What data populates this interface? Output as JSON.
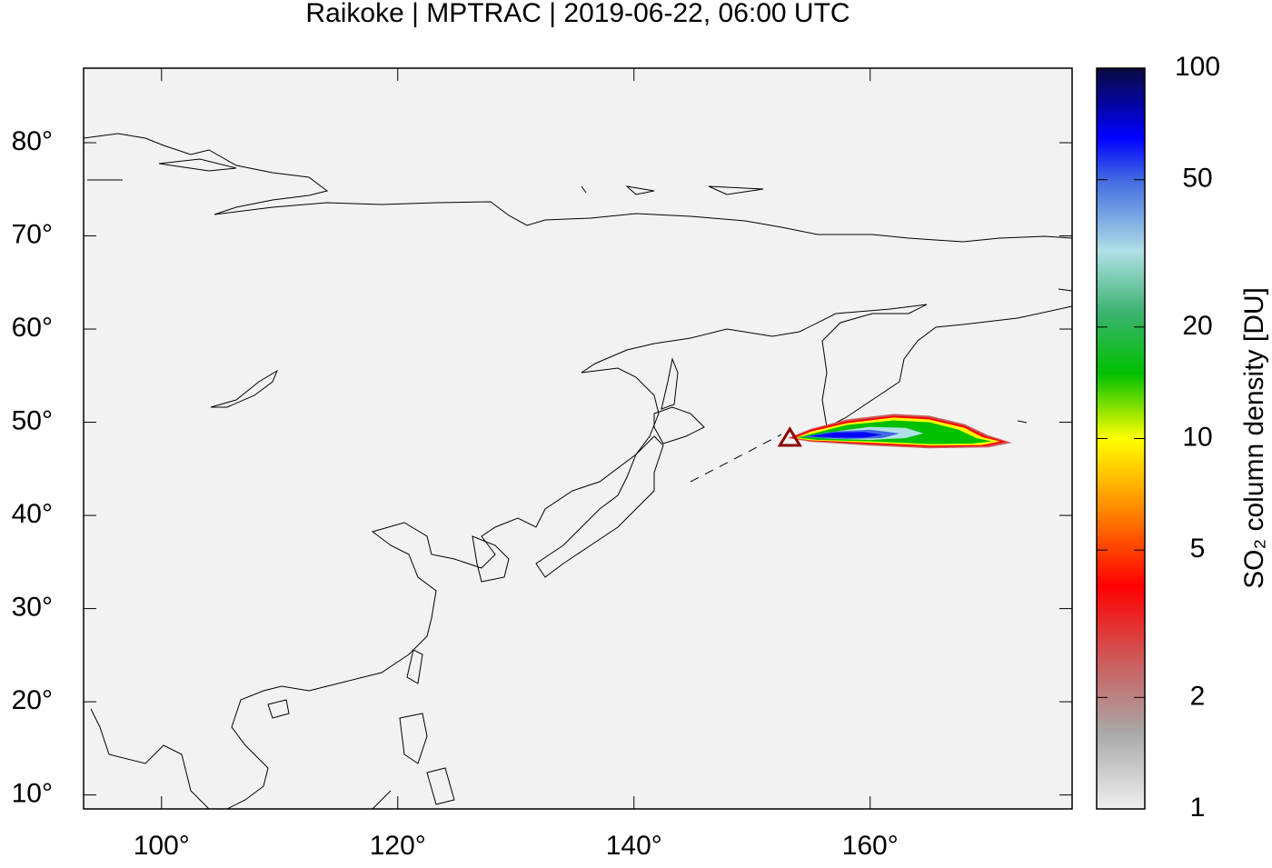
{
  "chart_data": {
    "type": "map",
    "title": "Raikoke | MPTRAC | 2019-06-22, 06:00 UTC",
    "xlim": [
      93.4,
      177.1
    ],
    "ylim": [
      8.5,
      88
    ],
    "xticks": [
      {
        "value": 100,
        "label": "100°"
      },
      {
        "value": 120,
        "label": "120°"
      },
      {
        "value": 140,
        "label": "140°"
      },
      {
        "value": 160,
        "label": "160°"
      }
    ],
    "yticks": [
      {
        "value": 10,
        "label": "10°"
      },
      {
        "value": 20,
        "label": "20°"
      },
      {
        "value": 30,
        "label": "30°"
      },
      {
        "value": 40,
        "label": "40°"
      },
      {
        "value": 50,
        "label": "50°"
      },
      {
        "value": 60,
        "label": "60°"
      },
      {
        "value": 70,
        "label": "70°"
      },
      {
        "value": 80,
        "label": "80°"
      }
    ],
    "colorbar": {
      "label": "SO₂ column density [DU]",
      "log_scale": true,
      "lim": [
        1,
        100
      ],
      "ticks": [
        1,
        2,
        5,
        10,
        20,
        50,
        100
      ],
      "colorscale": [
        {
          "value": 1,
          "color": "#efefef"
        },
        {
          "value": 1.6,
          "color": "#a9a9a9"
        },
        {
          "value": 2.5,
          "color": "#cd5c5c"
        },
        {
          "value": 4,
          "color": "#ff0000"
        },
        {
          "value": 6.5,
          "color": "#ff8c00"
        },
        {
          "value": 10,
          "color": "#ffff00"
        },
        {
          "value": 15,
          "color": "#00c000"
        },
        {
          "value": 22,
          "color": "#3cb371"
        },
        {
          "value": 32,
          "color": "#b0e0e6"
        },
        {
          "value": 50,
          "color": "#4169e1"
        },
        {
          "value": 65,
          "color": "#0000ff"
        },
        {
          "value": 100,
          "color": "#0a0a40"
        }
      ]
    },
    "contours": [
      {
        "level": 2.5,
        "lon": [
          153,
          155,
          158,
          162,
          165,
          168,
          170,
          172,
          170,
          165,
          160,
          155
        ],
        "lat": [
          48.3,
          49.3,
          50.3,
          50.9,
          50.7,
          49.8,
          48.6,
          47.8,
          47.3,
          47.2,
          47.5,
          47.9
        ]
      },
      {
        "level": 5,
        "lon": [
          153.3,
          155,
          158,
          162,
          165,
          168,
          169.8,
          171.5,
          169.8,
          165,
          160,
          155
        ],
        "lat": [
          48.3,
          49.2,
          50.1,
          50.7,
          50.5,
          49.6,
          48.5,
          47.9,
          47.45,
          47.35,
          47.65,
          48.0
        ]
      },
      {
        "level": 10,
        "lon": [
          153.6,
          155,
          158,
          162,
          165,
          168,
          169.5,
          171,
          169.5,
          165,
          160,
          155
        ],
        "lat": [
          48.3,
          49.0,
          49.9,
          50.5,
          50.3,
          49.4,
          48.4,
          47.95,
          47.55,
          47.5,
          47.8,
          48.05
        ]
      },
      {
        "level": 17,
        "lon": [
          153.8,
          155.5,
          158,
          162,
          165,
          167.5,
          169,
          170.3,
          168.5,
          165,
          160,
          155.5
        ],
        "lat": [
          48.35,
          48.9,
          49.7,
          50.2,
          50.0,
          49.2,
          48.3,
          47.95,
          47.7,
          47.65,
          47.95,
          48.1
        ]
      },
      {
        "level": 32,
        "lon": [
          154.5,
          157,
          160,
          163,
          164.5,
          163,
          160,
          157
        ],
        "lat": [
          48.45,
          49.0,
          49.5,
          49.4,
          48.8,
          48.3,
          48.1,
          48.2
        ]
      },
      {
        "level": 50,
        "lon": [
          154.2,
          157,
          160,
          162.5,
          161,
          158,
          156
        ],
        "lat": [
          48.45,
          49.0,
          49.2,
          48.8,
          48.3,
          48.2,
          48.3
        ]
      },
      {
        "level": 90,
        "lon": [
          154.8,
          157,
          159.5,
          161,
          159.5,
          157
        ],
        "lat": [
          48.5,
          48.9,
          48.95,
          48.65,
          48.35,
          48.35
        ]
      }
    ],
    "volcano": {
      "lon": 153.2,
      "lat": 48.3
    }
  }
}
